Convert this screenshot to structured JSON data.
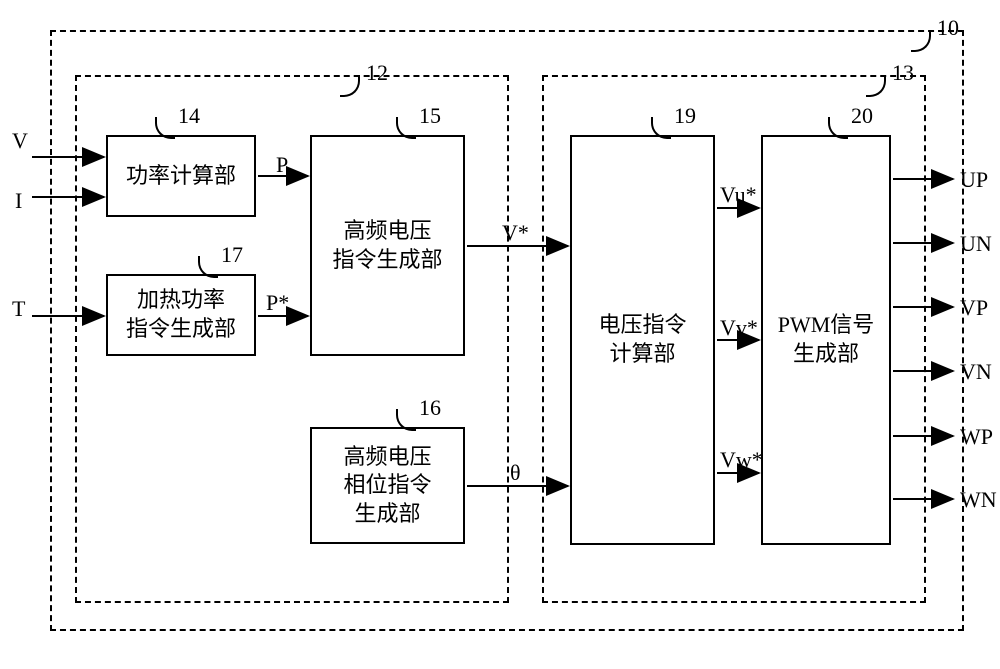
{
  "diagram": {
    "type": "flowchart",
    "background_color": "#ffffff",
    "line_color": "#000000",
    "font_family": "SimSun",
    "node_fontsize": 22,
    "label_fontsize": 22,
    "nodes": {
      "b14": {
        "ref": "14",
        "text": "功率计算部"
      },
      "b17": {
        "ref": "17",
        "text": "加热功率\n指令生成部"
      },
      "b15": {
        "ref": "15",
        "text": "高频电压\n指令生成部"
      },
      "b16": {
        "ref": "16",
        "text": "高频电压\n相位指令\n生成部"
      },
      "b19": {
        "ref": "19",
        "text": "电压指令\n计算部"
      },
      "b20": {
        "ref": "20",
        "text": "PWM信号\n生成部"
      }
    },
    "groups": {
      "outer": {
        "ref": "10"
      },
      "left": {
        "ref": "12"
      },
      "right": {
        "ref": "13"
      }
    },
    "inputs": [
      "V",
      "I",
      "T"
    ],
    "signals": {
      "p": "P",
      "ps": "P*",
      "vs": "V*",
      "th": "θ",
      "vu": "Vu*",
      "vv": "Vv*",
      "vw": "Vw*"
    },
    "outputs": [
      "UP",
      "UN",
      "VP",
      "VN",
      "WP",
      "WN"
    ]
  }
}
